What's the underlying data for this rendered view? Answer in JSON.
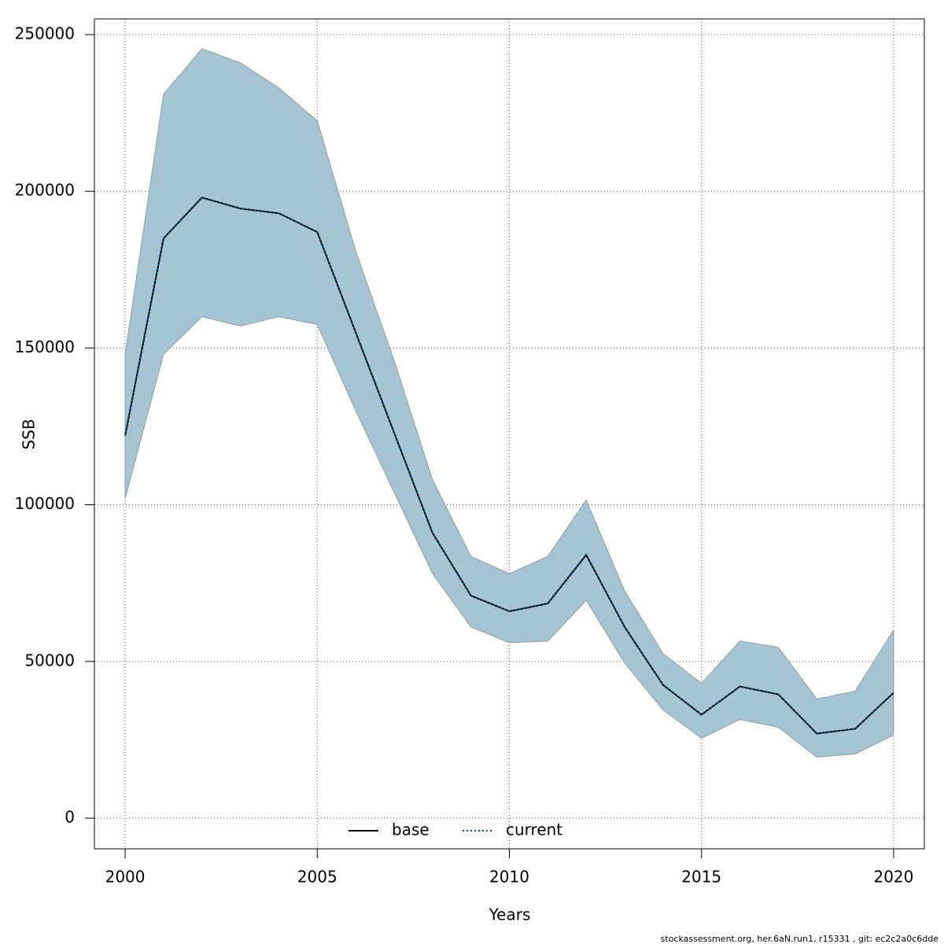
{
  "chart_data": {
    "type": "line",
    "xlabel": "Years",
    "ylabel": "SSB",
    "footer": "stockassessment.org, her.6aN.run1, r15331 , git: ec2c2a0c6dde",
    "x": [
      2000,
      2001,
      2002,
      2003,
      2004,
      2005,
      2006,
      2007,
      2008,
      2009,
      2010,
      2011,
      2012,
      2013,
      2014,
      2015,
      2016,
      2017,
      2018,
      2019,
      2020
    ],
    "series": [
      {
        "name": "base",
        "color": "#000000",
        "dash": "solid",
        "values": [
          122000,
          185000,
          198000,
          194500,
          193000,
          187000,
          155000,
          123000,
          91000,
          71000,
          66000,
          68500,
          84000,
          61000,
          42500,
          33000,
          42000,
          39500,
          27000,
          28500,
          40000
        ]
      },
      {
        "name": "current",
        "color": "#00588f",
        "dash": "dotted",
        "values": [
          122000,
          185000,
          198000,
          194500,
          193000,
          187000,
          155000,
          123000,
          91000,
          71000,
          66000,
          68500,
          84000,
          61000,
          42500,
          33000,
          42000,
          39500,
          27000,
          28500,
          40000
        ]
      }
    ],
    "interval": {
      "color": "#a5c4d4",
      "upper": [
        148000,
        231000,
        245500,
        241000,
        233000,
        222500,
        181000,
        146000,
        108000,
        83500,
        78000,
        83500,
        101500,
        72500,
        52500,
        43000,
        56500,
        54500,
        38000,
        40500,
        60000
      ],
      "lower": [
        102000,
        148000,
        160000,
        157000,
        160000,
        157500,
        130000,
        104000,
        78000,
        61000,
        56000,
        56500,
        69500,
        49500,
        34500,
        25500,
        31500,
        29000,
        19500,
        20500,
        26500
      ]
    },
    "xlim": [
      1999.2,
      2020.8
    ],
    "ylim": [
      -9789,
      255020
    ],
    "xticks": [
      2000,
      2005,
      2010,
      2015,
      2020
    ],
    "yticks": [
      0,
      50000,
      100000,
      150000,
      200000,
      250000
    ],
    "grid": true,
    "legend": "bottom"
  }
}
